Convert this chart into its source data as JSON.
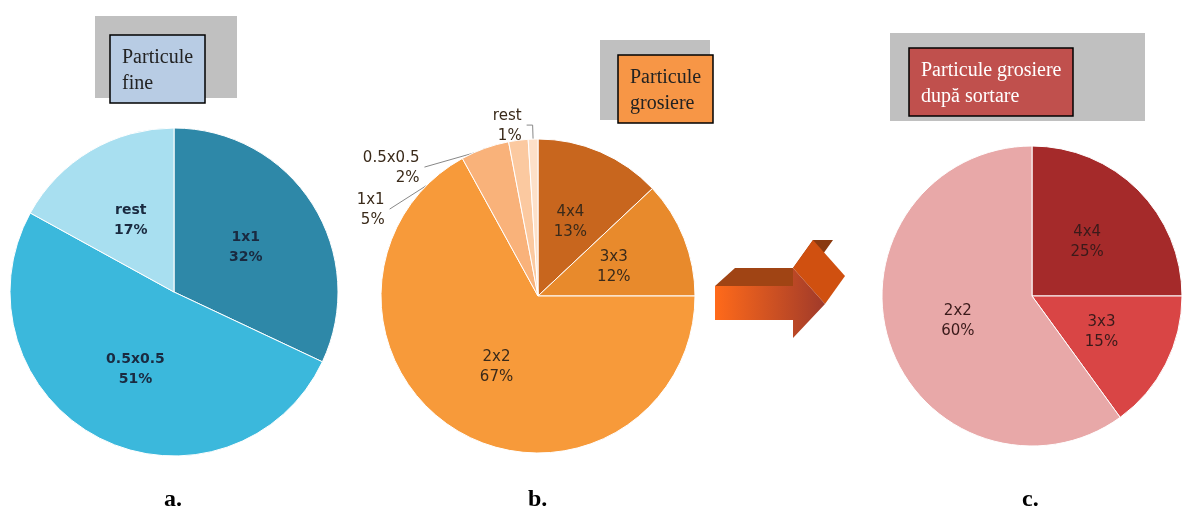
{
  "chart_data": [
    {
      "type": "pie",
      "title": "Particule\nfine",
      "categories": [
        "1x1",
        "0.5x0.5",
        "rest"
      ],
      "values": [
        32,
        51,
        17
      ],
      "value_labels": [
        "32%",
        "51%",
        "17%"
      ],
      "colors": [
        "#2e88a8",
        "#3bb8dc",
        "#a8dff0"
      ],
      "annotations": [
        "a."
      ]
    },
    {
      "type": "pie",
      "title": "Particule\ngrosiere",
      "categories": [
        "4x4",
        "3x3",
        "2x2",
        "1x1",
        "0.5x0.5",
        "rest"
      ],
      "values": [
        13,
        12,
        67,
        5,
        2,
        1
      ],
      "value_labels": [
        "13%",
        "12%",
        "67%",
        "5%",
        "2%",
        "1%"
      ],
      "colors": [
        "#c8661e",
        "#e88a2c",
        "#f79a3a",
        "#f9b27a",
        "#fbc9a0",
        "#fde0c8"
      ],
      "annotations": [
        "b."
      ]
    },
    {
      "type": "pie",
      "title": "Particule grosiere\ndupă sortare",
      "categories": [
        "4x4",
        "3x3",
        "2x2"
      ],
      "values": [
        25,
        15,
        60
      ],
      "value_labels": [
        "25%",
        "15%",
        "60%"
      ],
      "colors": [
        "#a52a2a",
        "#d94545",
        "#e8a8a8"
      ],
      "annotations": [
        "c."
      ]
    }
  ]
}
